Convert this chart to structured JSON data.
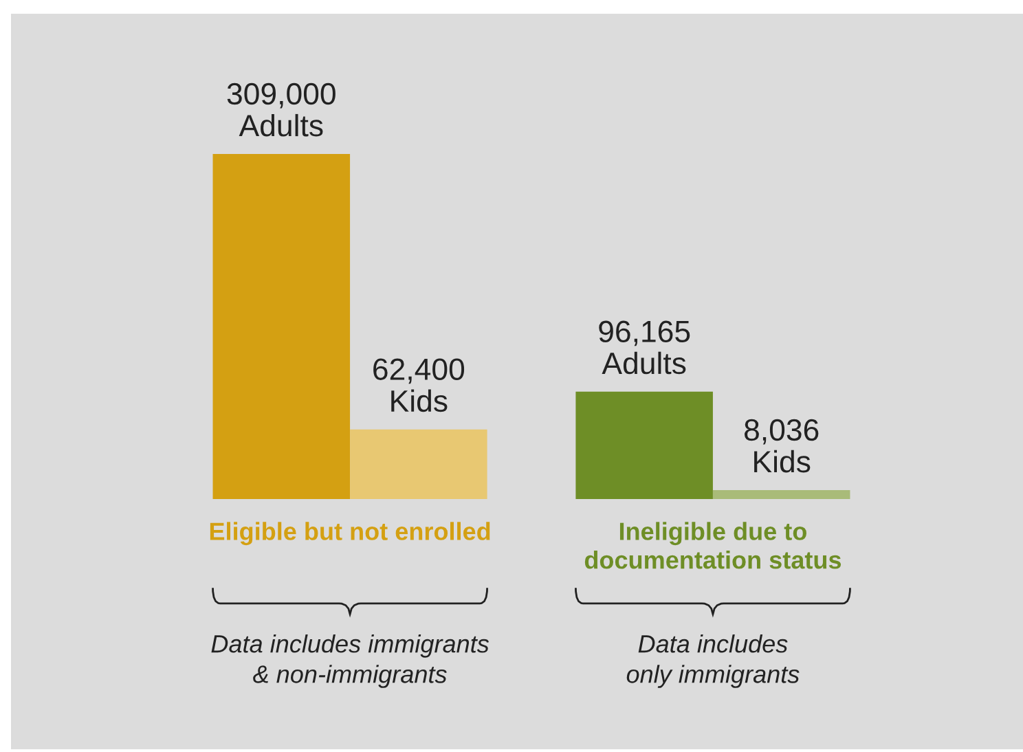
{
  "chart_data": {
    "type": "bar",
    "categories": [
      "Eligible but not enrolled",
      "Ineligible due to documentation status"
    ],
    "series": [
      {
        "name": "Adults",
        "colors": [
          "#d4a012",
          "#6e8e26"
        ],
        "values": [
          309000,
          96165
        ],
        "value_labels": [
          "309,000",
          "96,165"
        ]
      },
      {
        "name": "Kids",
        "colors": [
          "#e8c872",
          "#a9bb79"
        ],
        "values": [
          62400,
          8036
        ],
        "value_labels": [
          "62,400",
          "8,036"
        ]
      }
    ],
    "annotations": [
      "Data includes immigrants\n& non-immigrants",
      "Data includes\nonly immigrants"
    ],
    "grid": false,
    "legend": false,
    "relative": false
  }
}
